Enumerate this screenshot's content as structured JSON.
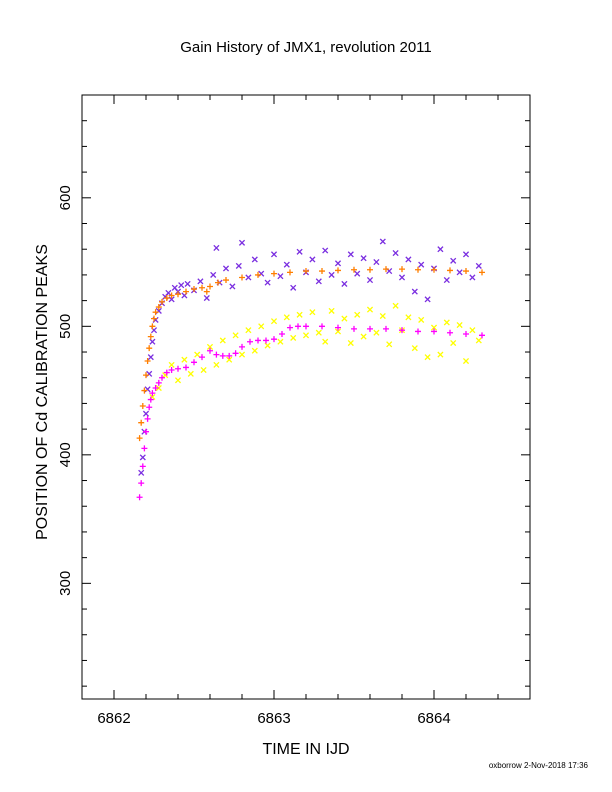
{
  "chart_data": {
    "type": "scatter",
    "title": "Gain History of JMX1, revolution 2011",
    "xlabel": "TIME IN IJD",
    "ylabel": "POSITION OF Cd CALIBRATION PEAKS",
    "xlim": [
      6861.8,
      6864.6
    ],
    "ylim": [
      210,
      680
    ],
    "x_ticks": [
      "6862",
      "6863",
      "6864"
    ],
    "y_ticks": [
      "300",
      "400",
      "500",
      "600"
    ],
    "grid": false,
    "footer": "oxborrow  2-Nov-2018 17:36",
    "series": [
      {
        "color": "#7a2ee0",
        "marker": "x",
        "points": [
          [
            6862.17,
            386
          ],
          [
            6862.18,
            398
          ],
          [
            6862.19,
            418
          ],
          [
            6862.2,
            432
          ],
          [
            6862.21,
            451
          ],
          [
            6862.22,
            463
          ],
          [
            6862.23,
            476
          ],
          [
            6862.24,
            488
          ],
          [
            6862.25,
            497
          ],
          [
            6862.26,
            505
          ],
          [
            6862.28,
            512
          ],
          [
            6862.3,
            518
          ],
          [
            6862.32,
            523
          ],
          [
            6862.34,
            526
          ],
          [
            6862.36,
            521
          ],
          [
            6862.38,
            530
          ],
          [
            6862.4,
            527
          ],
          [
            6862.42,
            532
          ],
          [
            6862.44,
            524
          ],
          [
            6862.46,
            533
          ],
          [
            6862.5,
            528
          ],
          [
            6862.54,
            535
          ],
          [
            6862.58,
            522
          ],
          [
            6862.62,
            540
          ],
          [
            6862.64,
            561
          ],
          [
            6862.66,
            534
          ],
          [
            6862.7,
            545
          ],
          [
            6862.74,
            531
          ],
          [
            6862.78,
            547
          ],
          [
            6862.8,
            565
          ],
          [
            6862.84,
            538
          ],
          [
            6862.88,
            552
          ],
          [
            6862.92,
            541
          ],
          [
            6862.96,
            534
          ],
          [
            6863.0,
            556
          ],
          [
            6863.04,
            539
          ],
          [
            6863.08,
            548
          ],
          [
            6863.12,
            530
          ],
          [
            6863.16,
            558
          ],
          [
            6863.2,
            542
          ],
          [
            6863.24,
            552
          ],
          [
            6863.28,
            535
          ],
          [
            6863.32,
            559
          ],
          [
            6863.36,
            540
          ],
          [
            6863.4,
            549
          ],
          [
            6863.44,
            533
          ],
          [
            6863.48,
            556
          ],
          [
            6863.52,
            541
          ],
          [
            6863.56,
            553
          ],
          [
            6863.6,
            536
          ],
          [
            6863.64,
            550
          ],
          [
            6863.68,
            566
          ],
          [
            6863.72,
            543
          ],
          [
            6863.76,
            557
          ],
          [
            6863.8,
            538
          ],
          [
            6863.84,
            552
          ],
          [
            6863.88,
            527
          ],
          [
            6863.92,
            548
          ],
          [
            6863.96,
            521
          ],
          [
            6864.0,
            545
          ],
          [
            6864.04,
            560
          ],
          [
            6864.08,
            536
          ],
          [
            6864.12,
            551
          ],
          [
            6864.16,
            542
          ],
          [
            6864.2,
            556
          ],
          [
            6864.24,
            538
          ],
          [
            6864.28,
            547
          ]
        ]
      },
      {
        "color": "#ff7f00",
        "marker": "+",
        "points": [
          [
            6862.16,
            413
          ],
          [
            6862.17,
            425
          ],
          [
            6862.18,
            438
          ],
          [
            6862.19,
            450
          ],
          [
            6862.2,
            462
          ],
          [
            6862.21,
            473
          ],
          [
            6862.22,
            483
          ],
          [
            6862.23,
            492
          ],
          [
            6862.24,
            500
          ],
          [
            6862.25,
            506
          ],
          [
            6862.26,
            511
          ],
          [
            6862.28,
            515
          ],
          [
            6862.3,
            519
          ],
          [
            6862.33,
            522
          ],
          [
            6862.36,
            524
          ],
          [
            6862.4,
            525
          ],
          [
            6862.45,
            527
          ],
          [
            6862.5,
            529
          ],
          [
            6862.55,
            530
          ],
          [
            6862.58,
            527
          ],
          [
            6862.6,
            531
          ],
          [
            6862.65,
            534
          ],
          [
            6862.7,
            536
          ],
          [
            6862.8,
            538
          ],
          [
            6862.9,
            540
          ],
          [
            6863.0,
            541
          ],
          [
            6863.1,
            542
          ],
          [
            6863.2,
            543
          ],
          [
            6863.3,
            543
          ],
          [
            6863.4,
            543.5
          ],
          [
            6863.5,
            544
          ],
          [
            6863.6,
            544
          ],
          [
            6863.7,
            544.5
          ],
          [
            6863.8,
            544.5
          ],
          [
            6863.9,
            544
          ],
          [
            6864.0,
            544
          ],
          [
            6864.1,
            543.5
          ],
          [
            6864.2,
            543
          ],
          [
            6864.3,
            542
          ]
        ]
      },
      {
        "color": "#ffff00",
        "marker": "x",
        "points": [
          [
            6862.24,
            445
          ],
          [
            6862.28,
            452
          ],
          [
            6862.32,
            462
          ],
          [
            6862.36,
            470
          ],
          [
            6862.4,
            458
          ],
          [
            6862.44,
            474
          ],
          [
            6862.48,
            463
          ],
          [
            6862.52,
            478
          ],
          [
            6862.56,
            466
          ],
          [
            6862.6,
            484
          ],
          [
            6862.64,
            470
          ],
          [
            6862.68,
            489
          ],
          [
            6862.72,
            474
          ],
          [
            6862.76,
            493
          ],
          [
            6862.8,
            478
          ],
          [
            6862.84,
            497
          ],
          [
            6862.88,
            481
          ],
          [
            6862.92,
            500
          ],
          [
            6862.96,
            485
          ],
          [
            6863.0,
            504
          ],
          [
            6863.04,
            488
          ],
          [
            6863.08,
            507
          ],
          [
            6863.12,
            491
          ],
          [
            6863.16,
            509
          ],
          [
            6863.2,
            493
          ],
          [
            6863.24,
            511
          ],
          [
            6863.28,
            495
          ],
          [
            6863.32,
            488
          ],
          [
            6863.36,
            512
          ],
          [
            6863.4,
            496
          ],
          [
            6863.44,
            506
          ],
          [
            6863.48,
            487
          ],
          [
            6863.52,
            509
          ],
          [
            6863.56,
            492
          ],
          [
            6863.6,
            513
          ],
          [
            6863.64,
            495
          ],
          [
            6863.68,
            508
          ],
          [
            6863.72,
            486
          ],
          [
            6863.76,
            516
          ],
          [
            6863.8,
            497
          ],
          [
            6863.84,
            507
          ],
          [
            6863.88,
            483
          ],
          [
            6863.92,
            505
          ],
          [
            6863.96,
            476
          ],
          [
            6864.0,
            499
          ],
          [
            6864.04,
            478
          ],
          [
            6864.08,
            503
          ],
          [
            6864.12,
            487
          ],
          [
            6864.16,
            501
          ],
          [
            6864.2,
            473
          ],
          [
            6864.24,
            497
          ],
          [
            6864.28,
            489
          ]
        ]
      },
      {
        "color": "#ff00ff",
        "marker": "+",
        "points": [
          [
            6862.16,
            367
          ],
          [
            6862.17,
            378
          ],
          [
            6862.18,
            391
          ],
          [
            6862.19,
            405
          ],
          [
            6862.2,
            418
          ],
          [
            6862.21,
            428
          ],
          [
            6862.22,
            437
          ],
          [
            6862.23,
            443
          ],
          [
            6862.24,
            448
          ],
          [
            6862.26,
            452
          ],
          [
            6862.28,
            456
          ],
          [
            6862.3,
            460
          ],
          [
            6862.33,
            464
          ],
          [
            6862.36,
            466
          ],
          [
            6862.4,
            467
          ],
          [
            6862.45,
            468
          ],
          [
            6862.5,
            472
          ],
          [
            6862.55,
            476
          ],
          [
            6862.6,
            481
          ],
          [
            6862.64,
            478
          ],
          [
            6862.68,
            477
          ],
          [
            6862.72,
            477
          ],
          [
            6862.76,
            479
          ],
          [
            6862.8,
            484
          ],
          [
            6862.85,
            488
          ],
          [
            6862.9,
            489
          ],
          [
            6862.95,
            489
          ],
          [
            6863.0,
            490
          ],
          [
            6863.05,
            494
          ],
          [
            6863.1,
            499
          ],
          [
            6863.15,
            500
          ],
          [
            6863.2,
            500
          ],
          [
            6863.3,
            500
          ],
          [
            6863.4,
            499
          ],
          [
            6863.5,
            498
          ],
          [
            6863.6,
            498
          ],
          [
            6863.7,
            498
          ],
          [
            6863.8,
            497
          ],
          [
            6863.9,
            496
          ],
          [
            6864.0,
            496
          ],
          [
            6864.1,
            495
          ],
          [
            6864.2,
            494
          ],
          [
            6864.3,
            493
          ]
        ]
      }
    ]
  }
}
